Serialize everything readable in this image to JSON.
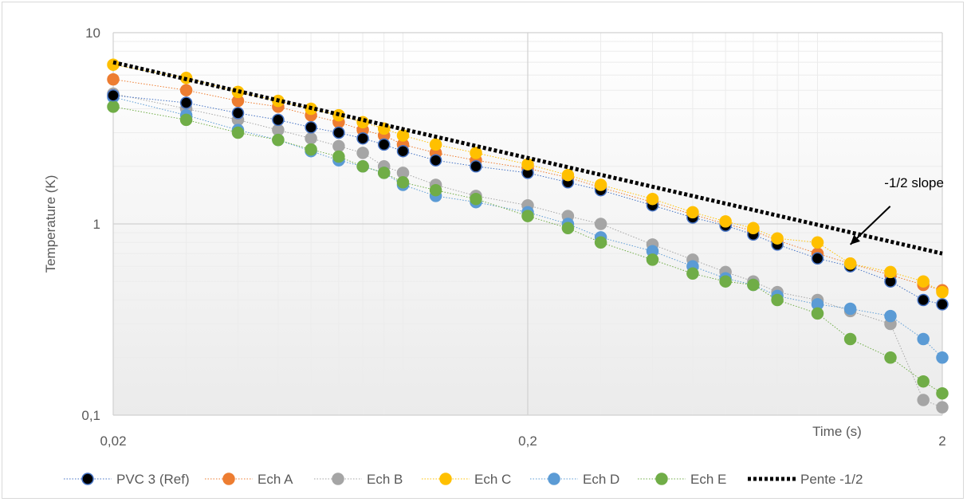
{
  "chart_data": {
    "type": "scatter",
    "x_scale": "log",
    "y_scale": "log",
    "xlim": [
      0.02,
      2
    ],
    "ylim": [
      0.1,
      10
    ],
    "xlabel": "Time (s)",
    "ylabel": "Temperature (K)",
    "grid": true,
    "legend_position": "bottom",
    "x_ticks": [
      {
        "value": 0.02,
        "label": "0,02"
      },
      {
        "value": 0.2,
        "label": "0,2"
      },
      {
        "value": 2,
        "label": "2"
      }
    ],
    "y_ticks": [
      {
        "value": 0.1,
        "label": "0,1"
      },
      {
        "value": 1,
        "label": "1"
      },
      {
        "value": 10,
        "label": "10"
      }
    ],
    "annotation": {
      "text": "-1/2 slope",
      "arrow_tip": [
        1.2,
        0.78
      ]
    },
    "series": [
      {
        "name": "PVC 3 (Ref)",
        "color": "#000000",
        "line_color": "#4472c4",
        "marker": "circle",
        "x": [
          0.02,
          0.03,
          0.04,
          0.05,
          0.06,
          0.07,
          0.08,
          0.09,
          0.1,
          0.12,
          0.15,
          0.2,
          0.25,
          0.3,
          0.4,
          0.5,
          0.6,
          0.7,
          0.8,
          1.0,
          1.2,
          1.5,
          1.8,
          2.0
        ],
        "y": [
          4.7,
          4.3,
          3.8,
          3.5,
          3.2,
          3.0,
          2.8,
          2.6,
          2.4,
          2.15,
          2.0,
          1.85,
          1.65,
          1.5,
          1.25,
          1.08,
          0.98,
          0.88,
          0.78,
          0.66,
          0.6,
          0.5,
          0.4,
          0.38
        ]
      },
      {
        "name": "Ech A",
        "color": "#ed7d31",
        "line_color": "#ed7d31",
        "marker": "circle",
        "x": [
          0.02,
          0.03,
          0.04,
          0.05,
          0.06,
          0.07,
          0.08,
          0.09,
          0.1,
          0.12,
          0.15,
          0.2,
          0.25,
          0.3,
          0.4,
          0.5,
          0.6,
          0.7,
          0.8,
          1.0,
          1.2,
          1.5,
          1.8,
          2.0
        ],
        "y": [
          5.7,
          5.0,
          4.4,
          4.1,
          3.7,
          3.4,
          3.1,
          2.9,
          2.6,
          2.35,
          2.15,
          1.95,
          1.75,
          1.55,
          1.3,
          1.12,
          1.0,
          0.92,
          0.82,
          0.7,
          0.62,
          0.54,
          0.48,
          0.45
        ]
      },
      {
        "name": "Ech B",
        "color": "#a5a5a5",
        "line_color": "#a5a5a5",
        "marker": "circle",
        "x": [
          0.02,
          0.03,
          0.04,
          0.05,
          0.06,
          0.07,
          0.08,
          0.09,
          0.1,
          0.12,
          0.15,
          0.2,
          0.25,
          0.3,
          0.4,
          0.5,
          0.6,
          0.7,
          0.8,
          1.0,
          1.2,
          1.5,
          1.8,
          2.0
        ],
        "y": [
          4.8,
          4.0,
          3.5,
          3.1,
          2.8,
          2.55,
          2.35,
          2.0,
          1.85,
          1.6,
          1.4,
          1.25,
          1.1,
          1.0,
          0.78,
          0.65,
          0.56,
          0.5,
          0.44,
          0.4,
          0.35,
          0.3,
          0.12,
          0.11
        ]
      },
      {
        "name": "Ech C",
        "color": "#ffc000",
        "line_color": "#ffc000",
        "marker": "circle",
        "x": [
          0.02,
          0.03,
          0.04,
          0.05,
          0.06,
          0.07,
          0.08,
          0.09,
          0.1,
          0.12,
          0.15,
          0.2,
          0.25,
          0.3,
          0.4,
          0.5,
          0.6,
          0.7,
          0.8,
          1.0,
          1.2,
          1.5,
          1.8,
          2.0
        ],
        "y": [
          6.8,
          5.8,
          4.9,
          4.4,
          4.0,
          3.7,
          3.4,
          3.15,
          2.9,
          2.6,
          2.35,
          2.05,
          1.8,
          1.6,
          1.35,
          1.15,
          1.03,
          0.95,
          0.84,
          0.8,
          0.62,
          0.56,
          0.5,
          0.44
        ]
      },
      {
        "name": "Ech D",
        "color": "#5b9bd5",
        "line_color": "#5b9bd5",
        "marker": "circle",
        "x": [
          0.02,
          0.03,
          0.04,
          0.05,
          0.06,
          0.07,
          0.08,
          0.09,
          0.1,
          0.12,
          0.15,
          0.2,
          0.25,
          0.3,
          0.4,
          0.5,
          0.6,
          0.7,
          0.8,
          1.0,
          1.2,
          1.5,
          1.8,
          2.0
        ],
        "y": [
          4.6,
          3.7,
          3.1,
          2.75,
          2.4,
          2.15,
          2.0,
          1.85,
          1.6,
          1.4,
          1.3,
          1.15,
          1.0,
          0.85,
          0.72,
          0.6,
          0.52,
          0.48,
          0.42,
          0.38,
          0.36,
          0.33,
          0.25,
          0.2
        ]
      },
      {
        "name": "Ech E",
        "color": "#70ad47",
        "line_color": "#70ad47",
        "marker": "circle",
        "x": [
          0.02,
          0.03,
          0.04,
          0.05,
          0.06,
          0.07,
          0.08,
          0.09,
          0.1,
          0.12,
          0.15,
          0.2,
          0.25,
          0.3,
          0.4,
          0.5,
          0.6,
          0.7,
          0.8,
          1.0,
          1.2,
          1.5,
          1.8,
          2.0
        ],
        "y": [
          4.1,
          3.5,
          3.0,
          2.75,
          2.45,
          2.25,
          2.0,
          1.85,
          1.65,
          1.5,
          1.35,
          1.1,
          0.95,
          0.8,
          0.65,
          0.55,
          0.5,
          0.48,
          0.4,
          0.34,
          0.25,
          0.2,
          0.15,
          0.13
        ]
      },
      {
        "name": "Pente -1/2",
        "color": "#000000",
        "line_color": "#000000",
        "marker": "none",
        "dashed": true,
        "x": [
          0.02,
          2
        ],
        "y": [
          7.0,
          0.7
        ]
      }
    ]
  }
}
